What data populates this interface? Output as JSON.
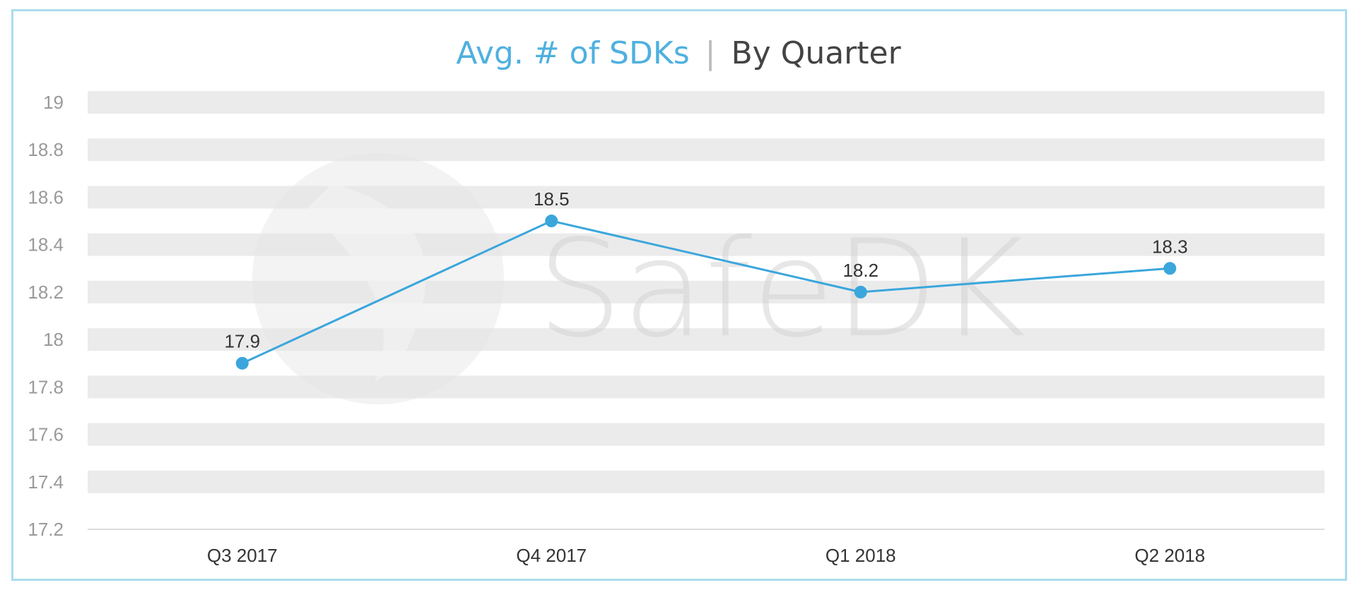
{
  "colors": {
    "accent": "#3aa6dc",
    "title_accent": "#4fb0df",
    "title_dark": "#444444",
    "band": "#ebebeb",
    "frame": "#a9dcee"
  },
  "watermark": {
    "text": "SafeDK"
  },
  "chart_data": {
    "type": "line",
    "title_part1": "Avg. # of SDKs",
    "title_separator": "|",
    "title_part2": "By Quarter",
    "categories": [
      "Q3 2017",
      "Q4 2017",
      "Q1 2018",
      "Q2 2018"
    ],
    "values": [
      17.9,
      18.5,
      18.2,
      18.3
    ],
    "ylim": [
      17.2,
      19
    ],
    "yticks": [
      "19",
      "18.8",
      "18.6",
      "18.4",
      "18.2",
      "18",
      "17.8",
      "17.6",
      "17.4",
      "17.2"
    ],
    "grid": "horizontal bands",
    "legend": "none"
  }
}
